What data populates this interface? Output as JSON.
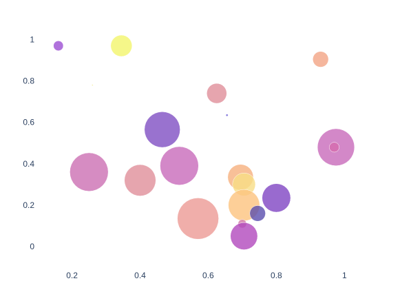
{
  "chart_data": {
    "type": "scatter",
    "title": "",
    "xlabel": "",
    "ylabel": "",
    "xlim": [
      0.12,
      1.06
    ],
    "ylim": [
      -0.09,
      1.075
    ],
    "x_ticks": [
      {
        "value": 0.2,
        "label": "0.2"
      },
      {
        "value": 0.4,
        "label": "0.4"
      },
      {
        "value": 0.6,
        "label": "0.6"
      },
      {
        "value": 0.8,
        "label": "0.8"
      },
      {
        "value": 1.0,
        "label": "1"
      }
    ],
    "y_ticks": [
      {
        "value": 0,
        "label": "0"
      },
      {
        "value": 0.2,
        "label": "0.2"
      },
      {
        "value": 0.4,
        "label": "0.4"
      },
      {
        "value": 0.6,
        "label": "0.6"
      },
      {
        "value": 0.8,
        "label": "0.8"
      },
      {
        "value": 1.0,
        "label": "1"
      }
    ],
    "grid": false,
    "legend": "none",
    "points": [
      {
        "x": 0.16,
        "y": 0.97,
        "size": 7,
        "color": "#9c4fd3"
      },
      {
        "x": 0.345,
        "y": 0.97,
        "size": 15,
        "color": "#f3f56b"
      },
      {
        "x": 0.26,
        "y": 0.78,
        "size": 1,
        "color": "#f3e88a"
      },
      {
        "x": 0.93,
        "y": 0.905,
        "size": 11,
        "color": "#f3a485"
      },
      {
        "x": 0.625,
        "y": 0.74,
        "size": 14,
        "color": "#e08e9a"
      },
      {
        "x": 0.655,
        "y": 0.635,
        "size": 1.5,
        "color": "#6a5bd5"
      },
      {
        "x": 0.465,
        "y": 0.565,
        "size": 25,
        "color": "#7f4fc3"
      },
      {
        "x": 0.975,
        "y": 0.48,
        "size": 26,
        "color": "#c86aba"
      },
      {
        "x": 0.97,
        "y": 0.48,
        "size": 7,
        "color": "#d66cae"
      },
      {
        "x": 0.25,
        "y": 0.36,
        "size": 27,
        "color": "#cc6fb3"
      },
      {
        "x": 0.4,
        "y": 0.32,
        "size": 22,
        "color": "#e08e9a"
      },
      {
        "x": 0.515,
        "y": 0.39,
        "size": 27,
        "color": "#c86aba"
      },
      {
        "x": 0.695,
        "y": 0.335,
        "size": 18,
        "color": "#f6b07e"
      },
      {
        "x": 0.705,
        "y": 0.3,
        "size": 16,
        "color": "#f7dd86"
      },
      {
        "x": 0.705,
        "y": 0.2,
        "size": 22,
        "color": "#fcc37e"
      },
      {
        "x": 0.8,
        "y": 0.235,
        "size": 20,
        "color": "#7f45c3"
      },
      {
        "x": 0.745,
        "y": 0.16,
        "size": 11,
        "color": "#5a4dae"
      },
      {
        "x": 0.57,
        "y": 0.135,
        "size": 29,
        "color": "#ec9a95"
      },
      {
        "x": 0.7,
        "y": 0.11,
        "size": 6,
        "color": "#d27aa8"
      },
      {
        "x": 0.705,
        "y": 0.05,
        "size": 19,
        "color": "#b148bd"
      }
    ]
  }
}
